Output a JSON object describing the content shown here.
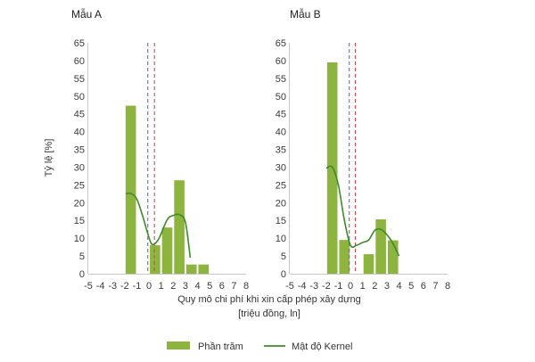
{
  "chart_data": {
    "type": "bar",
    "ylabel": "Tỷ lệ [%]",
    "xlabel_line1": "Quy mô chi phí khi xin cấp phép xây dựng",
    "xlabel_line2": "[triệu đồng, ln]",
    "ylim": [
      0,
      65
    ],
    "yticks": [
      0,
      5,
      10,
      15,
      20,
      25,
      30,
      35,
      40,
      45,
      50,
      55,
      60,
      65
    ],
    "xlim": [
      -5,
      8
    ],
    "xticks": [
      -5,
      -4,
      -3,
      -2,
      -1,
      0,
      1,
      2,
      3,
      4,
      5,
      6,
      7,
      8
    ],
    "legend": {
      "position": "bottom",
      "items": [
        {
          "name": "Phần trăm",
          "kind": "bar",
          "color": "#8db43f"
        },
        {
          "name": "Mật độ Kernel",
          "kind": "line",
          "color": "#3f8a2c"
        }
      ]
    },
    "colors": {
      "bar": "#8db43f",
      "kernel": "#3f8a2c",
      "purple_line": "#8e5ab5",
      "red_line": "#e0464e"
    },
    "panels": [
      {
        "title": "Mẫu A",
        "bars": [
          {
            "x_start": -2,
            "x_end": -1,
            "value": 47.3
          },
          {
            "x_start": 0,
            "x_end": 1,
            "value": 8.0
          },
          {
            "x_start": 1,
            "x_end": 2,
            "value": 13.0
          },
          {
            "x_start": 2,
            "x_end": 3,
            "value": 26.3
          },
          {
            "x_start": 3,
            "x_end": 4,
            "value": 2.6
          },
          {
            "x_start": 4,
            "x_end": 5,
            "value": 2.6
          }
        ],
        "kernel": {
          "x": [
            -1.9,
            -1.5,
            -1.0,
            -0.5,
            0.0,
            0.3,
            0.8,
            1.5,
            2.0,
            2.5,
            3.0,
            3.4
          ],
          "y": [
            22.5,
            22.6,
            21.0,
            16.0,
            10.2,
            8.2,
            9.8,
            15.2,
            16.4,
            16.6,
            14.5,
            4.5
          ]
        },
        "vlines": [
          {
            "x": -0.1,
            "style": "purple"
          },
          {
            "x": 0.45,
            "style": "red"
          }
        ]
      },
      {
        "title": "Mẫu B",
        "bars": [
          {
            "x_start": -2,
            "x_end": -1,
            "value": 59.5
          },
          {
            "x_start": -1,
            "x_end": 0,
            "value": 9.5
          },
          {
            "x_start": 1,
            "x_end": 2,
            "value": 5.5
          },
          {
            "x_start": 2,
            "x_end": 3,
            "value": 15.3
          },
          {
            "x_start": 3,
            "x_end": 4,
            "value": 9.4
          }
        ],
        "kernel": {
          "x": [
            -2.0,
            -1.5,
            -1.0,
            -0.5,
            0.0,
            0.5,
            1.0,
            1.5,
            2.0,
            2.5,
            3.0,
            3.5,
            4.0
          ],
          "y": [
            29.7,
            30.0,
            25.0,
            15.0,
            8.0,
            8.0,
            8.8,
            9.5,
            12.2,
            12.5,
            11.0,
            8.5,
            5.0
          ]
        },
        "vlines": [
          {
            "x": -0.1,
            "style": "purple"
          },
          {
            "x": 0.4,
            "style": "red"
          }
        ]
      }
    ]
  }
}
